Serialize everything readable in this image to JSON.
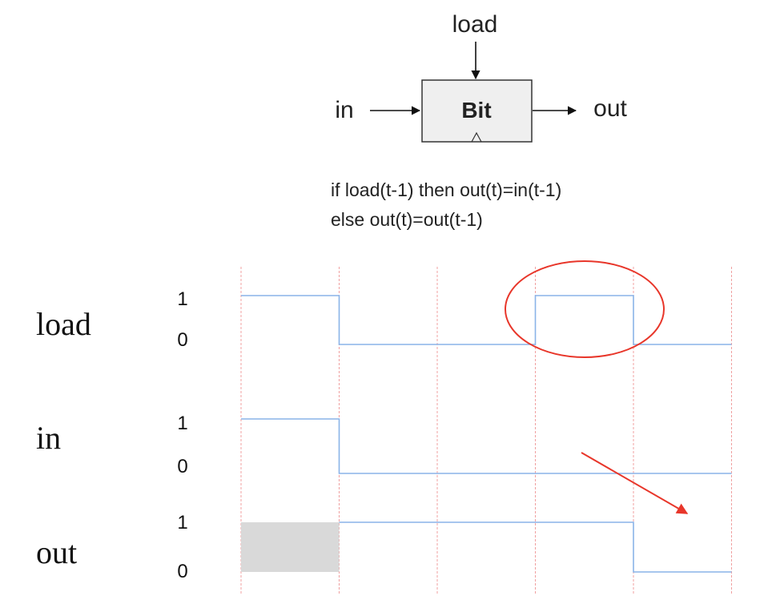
{
  "chip": {
    "name": "Bit",
    "load_label": "load",
    "in_label": "in",
    "out_label": "out"
  },
  "spec": {
    "line1": "if load(t-1) then out(t)=in(t-1)",
    "line2": "else out(t)=out(t-1)"
  },
  "timing": {
    "signals": [
      {
        "name": "load",
        "high_label": "1",
        "low_label": "0",
        "levels": [
          1,
          0,
          0,
          1,
          0
        ],
        "color": "#8ab4e8"
      },
      {
        "name": "in",
        "high_label": "1",
        "low_label": "0",
        "levels": [
          1,
          0,
          0,
          0,
          0
        ],
        "color": "#8ab4e8"
      },
      {
        "name": "out",
        "high_label": "1",
        "low_label": "0",
        "levels": [
          null,
          1,
          1,
          1,
          0
        ],
        "color": "#8ab4e8"
      }
    ],
    "cycles": 5,
    "clock_line_color": "#f0a0a0",
    "unknown_fill": "#d9d9d9",
    "annotation_color": "#e8362a"
  }
}
